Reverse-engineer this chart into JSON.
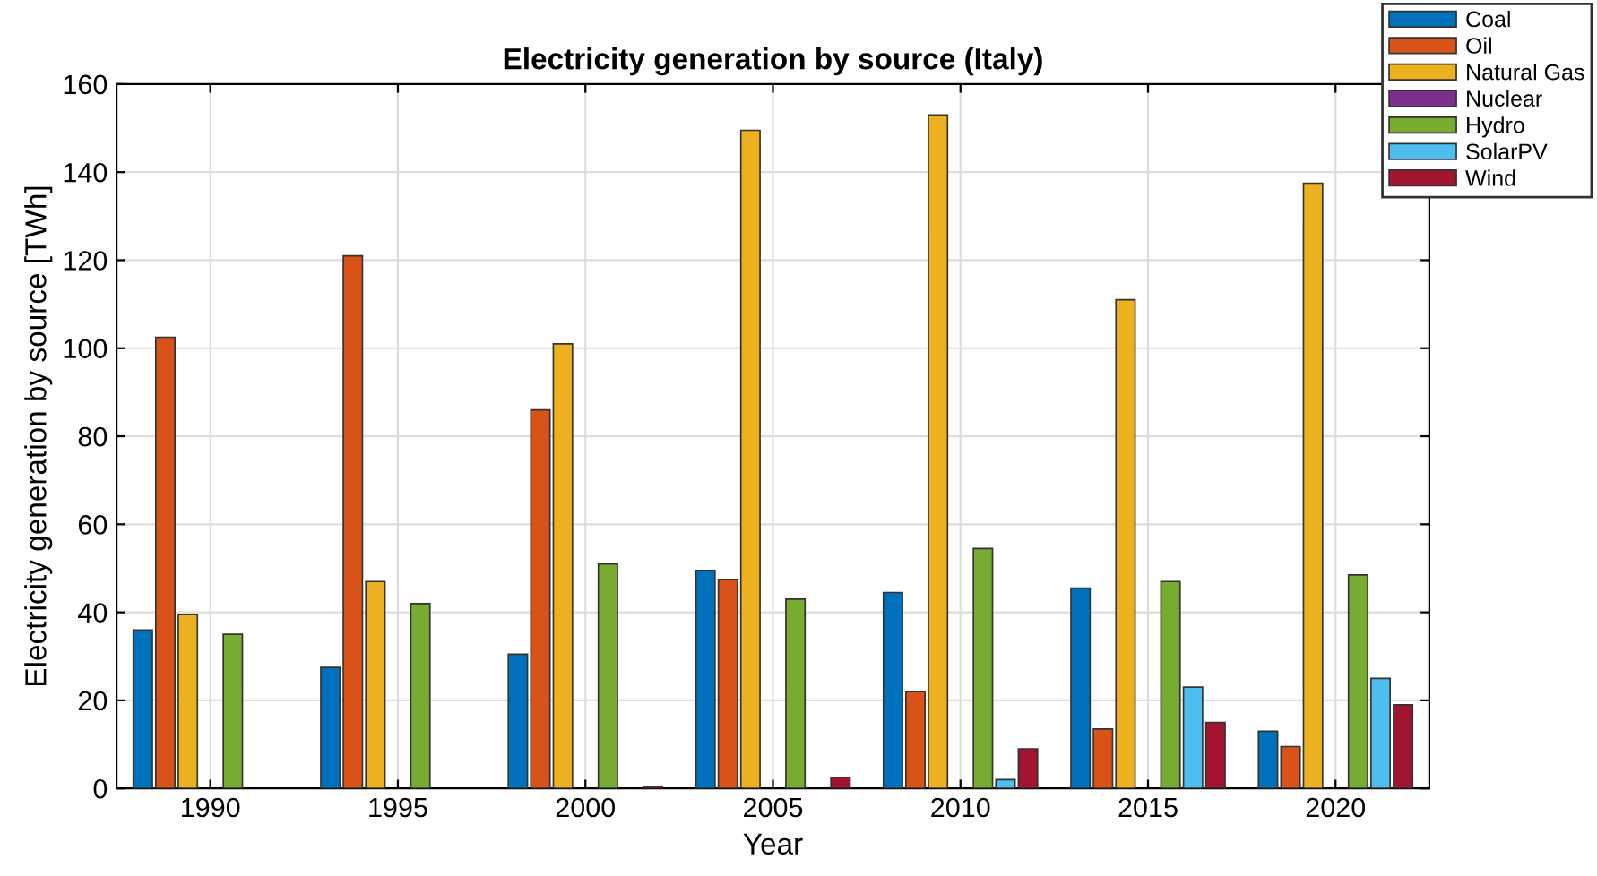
{
  "chart_data": {
    "type": "bar",
    "title": "Electricity generation by source (Italy)",
    "xlabel": "Year",
    "ylabel": "Electricity generation by source [TWh]",
    "categories": [
      "1990",
      "1995",
      "2000",
      "2005",
      "2010",
      "2015",
      "2020"
    ],
    "series": [
      {
        "name": "Coal",
        "color": "#0072bd",
        "values": [
          36,
          27.5,
          30.5,
          49.5,
          44.5,
          45.5,
          13
        ]
      },
      {
        "name": "Oil",
        "color": "#d95319",
        "values": [
          102.5,
          121,
          86,
          47.5,
          22,
          13.5,
          9.5
        ]
      },
      {
        "name": "Natural Gas",
        "color": "#edb120",
        "values": [
          39.5,
          47,
          101,
          149.5,
          153,
          111,
          137.5
        ]
      },
      {
        "name": "Nuclear",
        "color": "#7e2f8e",
        "values": [
          null,
          null,
          null,
          null,
          null,
          null,
          null
        ]
      },
      {
        "name": "Hydro",
        "color": "#77ac30",
        "values": [
          35,
          42,
          51,
          43,
          54.5,
          47,
          48.5
        ]
      },
      {
        "name": "SolarPV",
        "color": "#4dbeee",
        "values": [
          null,
          null,
          null,
          null,
          2,
          23,
          25
        ]
      },
      {
        "name": "Wind",
        "color": "#a2142f",
        "values": [
          null,
          null,
          0.5,
          2.5,
          9,
          15,
          19
        ]
      }
    ],
    "ylim": [
      0,
      160
    ],
    "yticks": [
      0,
      20,
      40,
      60,
      80,
      100,
      120,
      140,
      160
    ],
    "grid": true,
    "legend": "top right"
  }
}
